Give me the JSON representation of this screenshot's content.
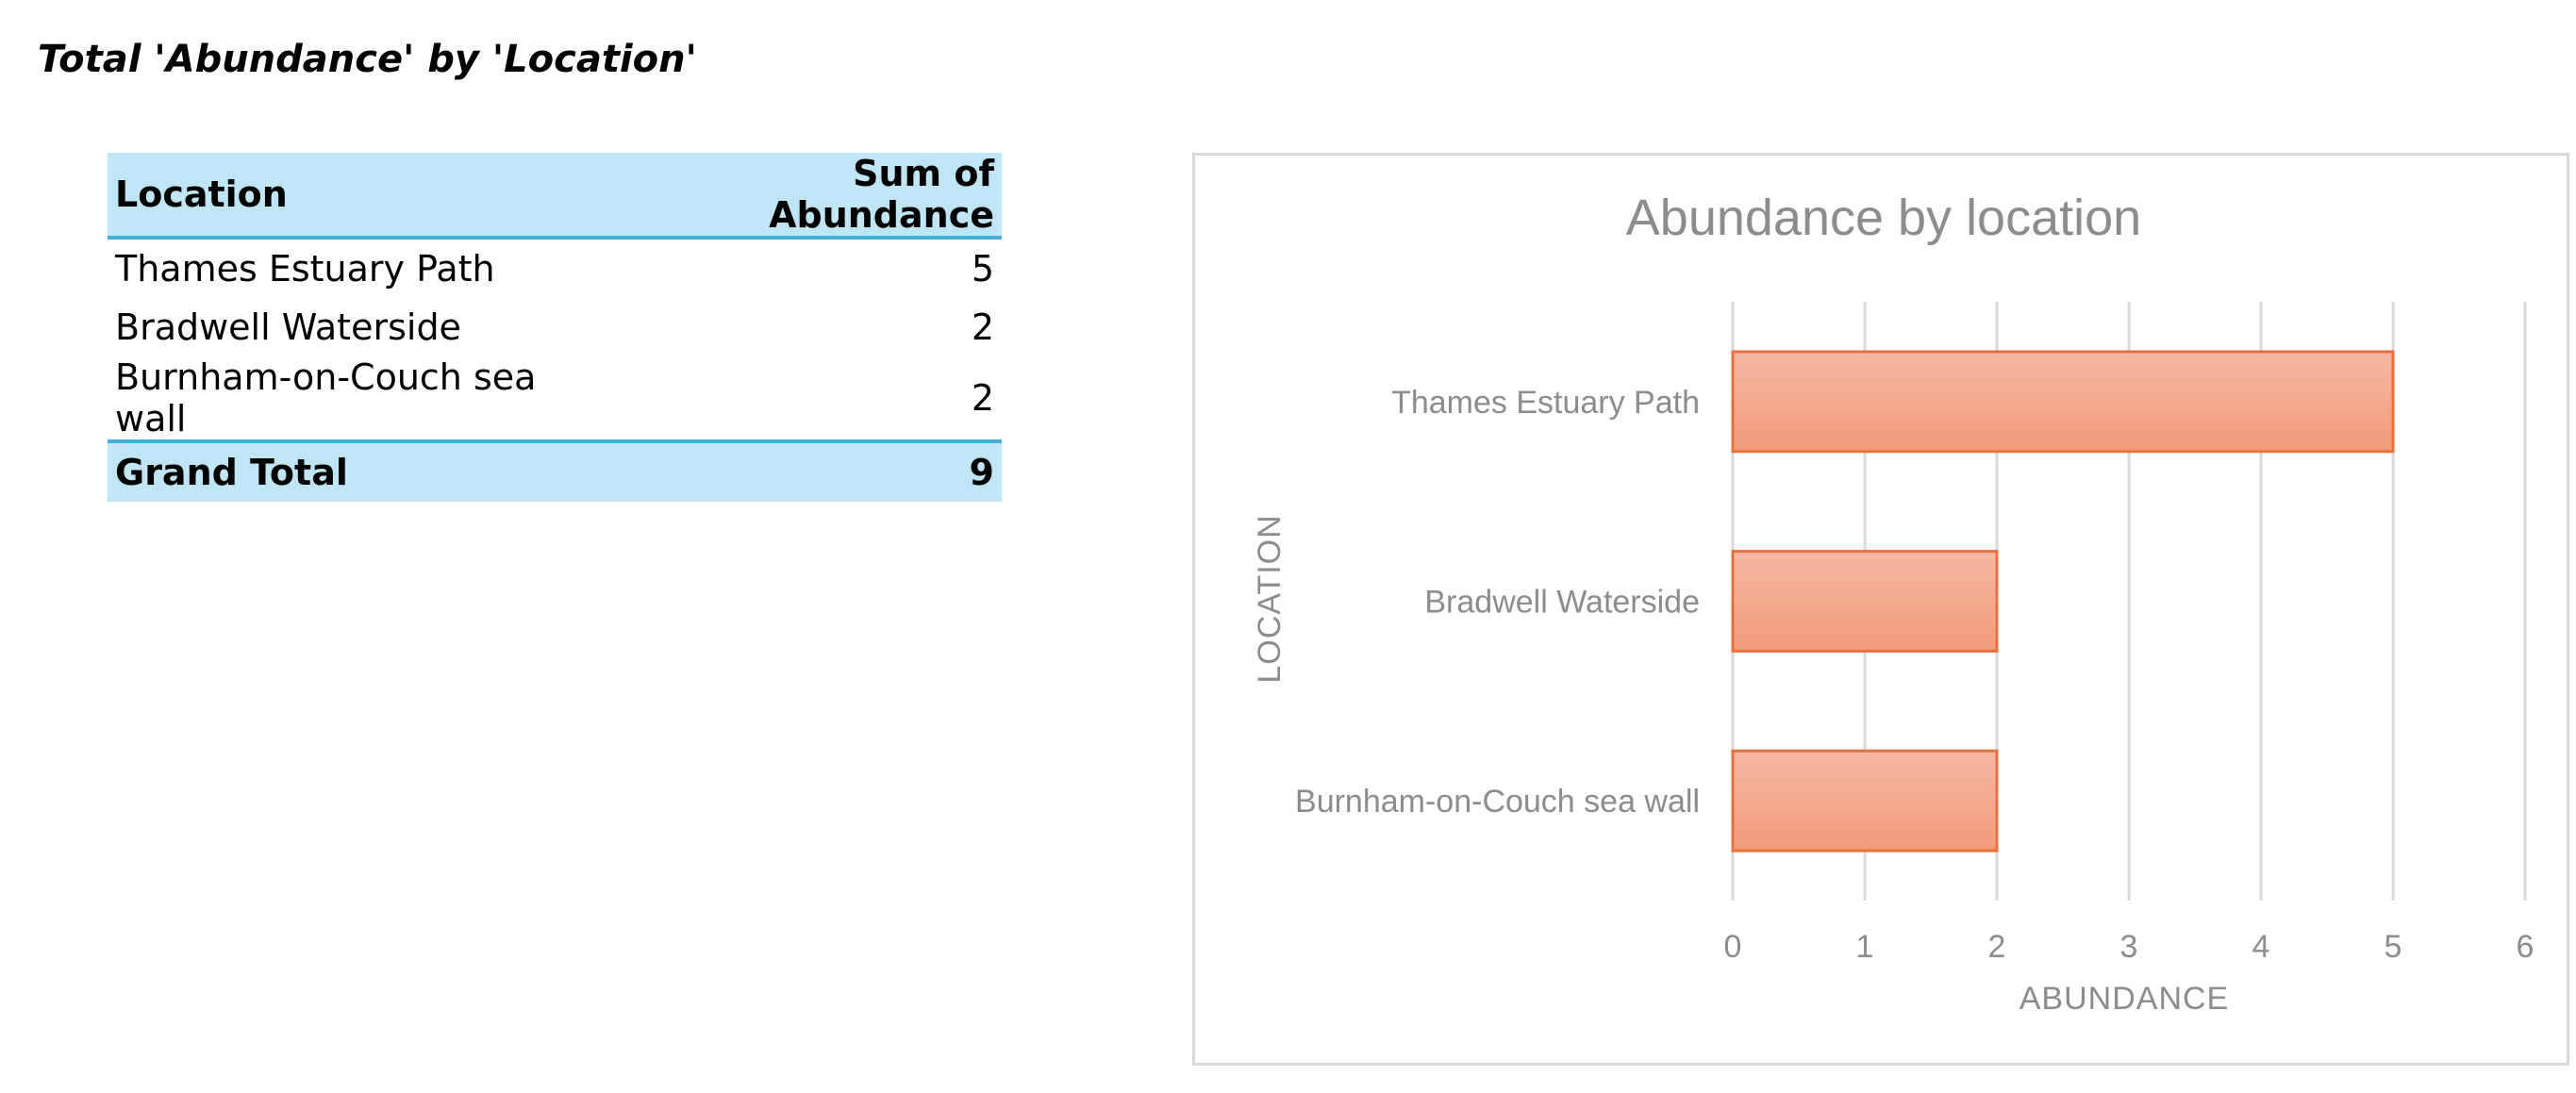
{
  "heading": "Total 'Abundance' by 'Location'",
  "pivot_table": {
    "columns": [
      "Location",
      "Sum of Abundance"
    ],
    "rows": [
      {
        "location": "Thames Estuary Path",
        "sum": "5"
      },
      {
        "location": "Bradwell Waterside",
        "sum": "2"
      },
      {
        "location": "Burnham-on-Couch sea wall",
        "sum": "2"
      }
    ],
    "total": {
      "label": "Grand Total",
      "sum": "9"
    }
  },
  "chart_data": {
    "type": "bar",
    "orientation": "horizontal",
    "title": "Abundance by location",
    "xlabel": "ABUNDANCE",
    "ylabel": "LOCATION",
    "categories": [
      "Thames Estuary Path",
      "Bradwell Waterside",
      "Burnham-on-Couch sea wall"
    ],
    "values": [
      5,
      2,
      2
    ],
    "xlim": [
      0,
      6
    ],
    "x_ticks": [
      0,
      1,
      2,
      3,
      4,
      5,
      6
    ],
    "grid": "vertical",
    "legend": "none",
    "bar_fill_top": "#f4b9a3",
    "bar_fill_bottom": "#f29b78",
    "bar_stroke": "#e8703f",
    "grid_color": "#d9d9d9",
    "text_color": "#8c8c8c"
  }
}
